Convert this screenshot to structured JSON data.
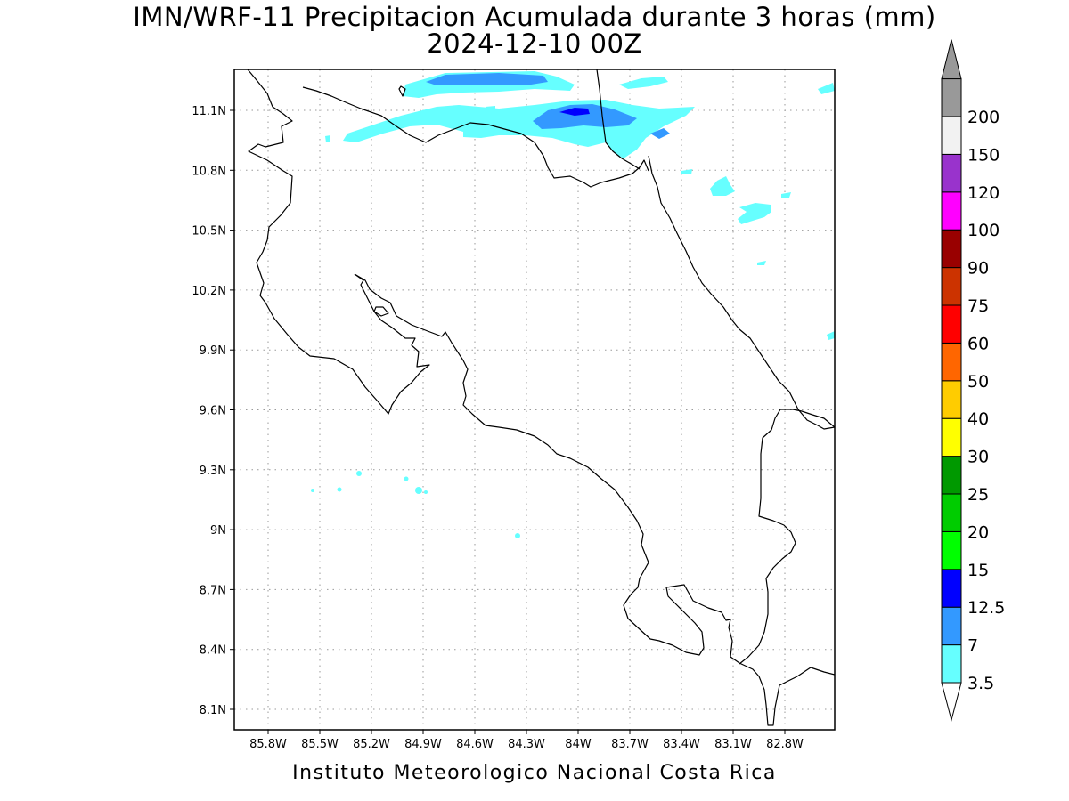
{
  "title_line1": "IMN/WRF-11 Precipitacion Acumulada durante 3 horas (mm)",
  "title_line2": "2024-12-10 00Z",
  "footer": "Instituto Meteorologico Nacional Costa Rica",
  "map": {
    "lon_ticks": [
      "85.8W",
      "85.5W",
      "85.2W",
      "84.9W",
      "84.6W",
      "84.3W",
      "84W",
      "83.7W",
      "83.4W",
      "83.1W",
      "82.8W"
    ],
    "lat_ticks": [
      "11.1N",
      "10.8N",
      "10.5N",
      "10.2N",
      "9.9N",
      "9.6N",
      "9.3N",
      "9N",
      "8.7N",
      "8.4N",
      "8.1N"
    ],
    "grid": "dotted"
  },
  "legend": {
    "items": [
      {
        "label": "3.5",
        "color": "#66ffff"
      },
      {
        "label": "7",
        "color": "#3399ff"
      },
      {
        "label": "12.5",
        "color": "#0000ff"
      },
      {
        "label": "15",
        "color": "#00ff00"
      },
      {
        "label": "20",
        "color": "#00cc00"
      },
      {
        "label": "25",
        "color": "#009900"
      },
      {
        "label": "30",
        "color": "#ffff00"
      },
      {
        "label": "40",
        "color": "#ffcc00"
      },
      {
        "label": "50",
        "color": "#ff6600"
      },
      {
        "label": "60",
        "color": "#ff0000"
      },
      {
        "label": "75",
        "color": "#cc3300"
      },
      {
        "label": "90",
        "color": "#990000"
      },
      {
        "label": "100",
        "color": "#ff00ff"
      },
      {
        "label": "120",
        "color": "#9933cc"
      },
      {
        "label": "150",
        "color": "#f2f2f2"
      },
      {
        "label": "200",
        "color": "#999999"
      }
    ],
    "top_arrow_color": "#999999",
    "bottom_arrow_color": "#ffffff"
  }
}
